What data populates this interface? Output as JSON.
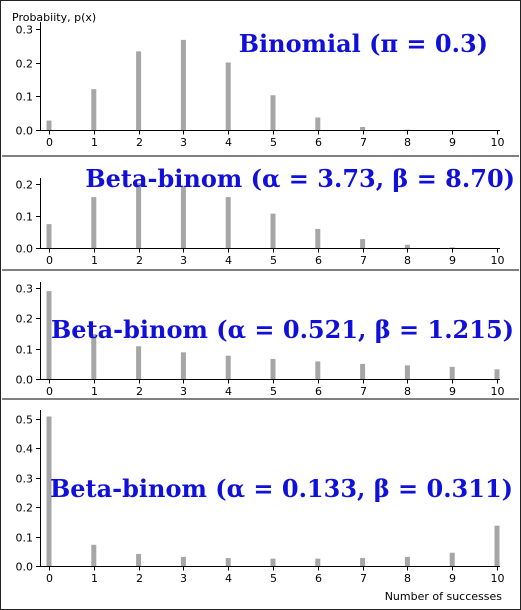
{
  "figure": {
    "ylabel": "Probabiity, p(x)",
    "xlabel": "Number of successes"
  },
  "chart_data": [
    {
      "type": "bar",
      "title": "Binomial (π = 0.3)",
      "x": [
        0,
        1,
        2,
        3,
        4,
        5,
        6,
        7,
        8,
        9,
        10
      ],
      "values": [
        0.028,
        0.121,
        0.233,
        0.267,
        0.2,
        0.103,
        0.037,
        0.009,
        0.001,
        0.0001,
        0.0
      ],
      "ylim": [
        0,
        0.32
      ],
      "yticks": [
        0.0,
        0.1,
        0.2,
        0.3
      ],
      "ytick_labels": [
        "0.0",
        "0.1",
        "0.2",
        "0.3"
      ],
      "xtick_labels": [
        "0",
        "1",
        "2",
        "3",
        "4",
        "5",
        "6",
        "7",
        "8",
        "9",
        "10"
      ],
      "bar_color": "#a6a6a6"
    },
    {
      "type": "bar",
      "title": "Beta-binom (α = 3.73, β = 8.70)",
      "x": [
        0,
        1,
        2,
        3,
        4,
        5,
        6,
        7,
        8,
        9,
        10
      ],
      "values": [
        0.075,
        0.16,
        0.204,
        0.195,
        0.16,
        0.108,
        0.06,
        0.028,
        0.01,
        0.002,
        0.0
      ],
      "ylim": [
        0,
        0.22
      ],
      "yticks": [
        0.0,
        0.1,
        0.2
      ],
      "ytick_labels": [
        "0.0",
        "0.1",
        "0.2"
      ],
      "xtick_labels": [
        "0",
        "1",
        "2",
        "3",
        "4",
        "5",
        "6",
        "7",
        "8",
        "9",
        "10"
      ],
      "bar_color": "#a6a6a6"
    },
    {
      "type": "bar",
      "title": "Beta-binom (α = 0.521, β = 1.215)",
      "x": [
        0,
        1,
        2,
        3,
        4,
        5,
        6,
        7,
        8,
        9,
        10
      ],
      "values": [
        0.29,
        0.148,
        0.108,
        0.088,
        0.077,
        0.066,
        0.058,
        0.05,
        0.045,
        0.04,
        0.032
      ],
      "ylim": [
        0,
        0.32
      ],
      "yticks": [
        0.0,
        0.1,
        0.2,
        0.3
      ],
      "ytick_labels": [
        "0.0",
        "0.1",
        "0.2",
        "0.3"
      ],
      "xtick_labels": [
        "0",
        "1",
        "2",
        "3",
        "4",
        "5",
        "6",
        "7",
        "8",
        "9",
        "10"
      ],
      "bar_color": "#a6a6a6"
    },
    {
      "type": "bar",
      "title": "Beta-binom (α = 0.133, β = 0.311)",
      "x": [
        0,
        1,
        2,
        3,
        4,
        5,
        6,
        7,
        8,
        9,
        10
      ],
      "values": [
        0.508,
        0.072,
        0.041,
        0.031,
        0.027,
        0.025,
        0.025,
        0.027,
        0.031,
        0.045,
        0.137
      ],
      "ylim": [
        0,
        0.53
      ],
      "yticks": [
        0.0,
        0.1,
        0.2,
        0.3,
        0.4,
        0.5
      ],
      "ytick_labels": [
        "0.0",
        "0.1",
        "0.2",
        "0.3",
        "0.4",
        "0.5"
      ],
      "xtick_labels": [
        "0",
        "1",
        "2",
        "3",
        "4",
        "5",
        "6",
        "7",
        "8",
        "9",
        "10"
      ],
      "bar_color": "#a6a6a6"
    }
  ]
}
